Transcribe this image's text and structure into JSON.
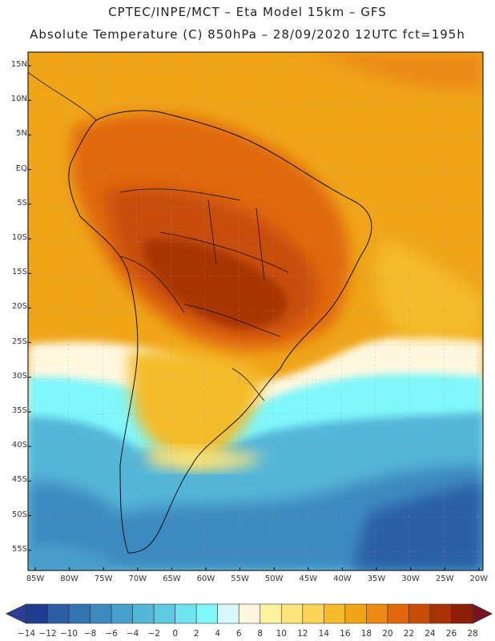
{
  "header": {
    "line1": "CPTEC/INPE/MCT –   Eta Model 15km – GFS",
    "line2": "Absolute Temperature (C) 850hPa – 28/09/2020 12UTC fct=195h"
  },
  "lat_labels": [
    "15N",
    "10N",
    "5N",
    "EQ",
    "5S",
    "10S",
    "15S",
    "20S",
    "25S",
    "30S",
    "35S",
    "40S",
    "45S",
    "50S",
    "55S"
  ],
  "lon_labels": [
    "85W",
    "80W",
    "75W",
    "70W",
    "65W",
    "60W",
    "55W",
    "50W",
    "45W",
    "40W",
    "35W",
    "30W",
    "25W",
    "20W"
  ],
  "colorbar": {
    "labels": [
      "-14",
      "-12",
      "-10",
      "-8",
      "-6",
      "-4",
      "-2",
      "0",
      "2",
      "4",
      "6",
      "8",
      "10",
      "12",
      "14",
      "16",
      "18",
      "20",
      "22",
      "24",
      "26",
      "28"
    ],
    "colors": [
      "#1f3d8f",
      "#2c5ea6",
      "#3474b3",
      "#3c8ac0",
      "#48a0cc",
      "#55b6d8",
      "#5ecbe3",
      "#6fe3ee",
      "#7ff7fb",
      "#d8f6fb",
      "#fff8e0",
      "#fdf2a0",
      "#fce57a",
      "#f9d256",
      "#f4bc2a",
      "#f0a519",
      "#ec8a14",
      "#e0680c",
      "#c84d08",
      "#a83406",
      "#8a2005"
    ]
  },
  "legend_values": {
    "domain": "Absolute temperature 850hPa",
    "units": "C"
  }
}
